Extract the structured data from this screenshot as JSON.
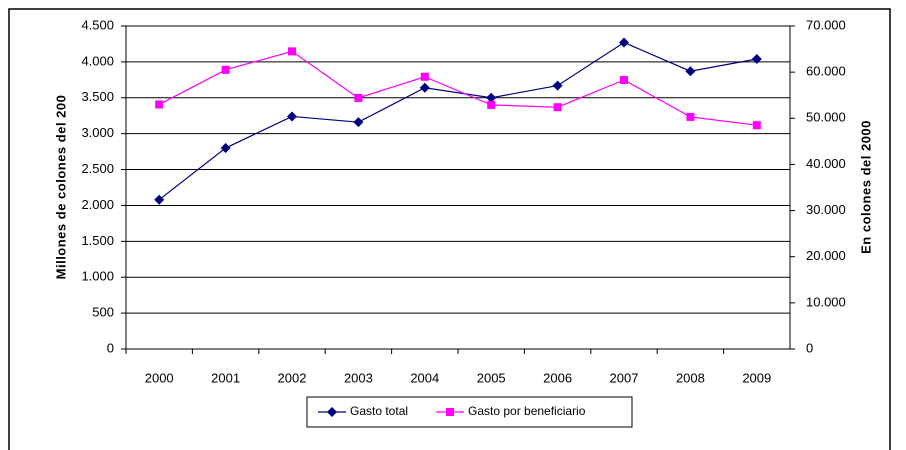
{
  "chart_data": {
    "type": "line",
    "y_label": "Millones de colones del 200",
    "y2_label": "En colones del 2000",
    "categories": [
      "2000",
      "2001",
      "2002",
      "2003",
      "2004",
      "2005",
      "2006",
      "2007",
      "2008",
      "2009"
    ],
    "series": [
      {
        "name": "Gasto total",
        "color": "#000080",
        "marker": "diamond",
        "values": [
          2080,
          2800,
          3240,
          3160,
          3640,
          3500,
          3670,
          4270,
          3870,
          4040
        ]
      },
      {
        "name": "Gasto por beneficiario",
        "color": "#ff00ff",
        "marker": "square",
        "axis": "y2",
        "values": [
          53000,
          60500,
          64500,
          54400,
          59000,
          52900,
          52400,
          58300,
          50300,
          48500
        ]
      }
    ],
    "ylim": [
      0,
      4500
    ],
    "yticks": [
      0,
      500,
      {
        "value": 1000,
        "label": "1.000"
      },
      {
        "value": 1500,
        "label": "1.500"
      },
      {
        "value": 2000,
        "label": "2.000"
      },
      {
        "value": 2500,
        "label": "2.500"
      },
      {
        "value": 3000,
        "label": "3.000"
      },
      {
        "value": 3500,
        "label": "3.500"
      },
      {
        "value": 4000,
        "label": "4.000"
      },
      {
        "value": 4500,
        "label": "4.500"
      }
    ],
    "y2lim": [
      0,
      70000
    ],
    "y2ticks": [
      0,
      {
        "value": 10000,
        "label": "10.000"
      },
      {
        "value": 20000,
        "label": "20.000"
      },
      {
        "value": 30000,
        "label": "30.000"
      },
      {
        "value": 40000,
        "label": "40.000"
      },
      {
        "value": 50000,
        "label": "50.000"
      },
      {
        "value": 60000,
        "label": "60.000"
      },
      {
        "value": 70000,
        "label": "70.000"
      }
    ],
    "grid": true,
    "legend": "bottom"
  }
}
